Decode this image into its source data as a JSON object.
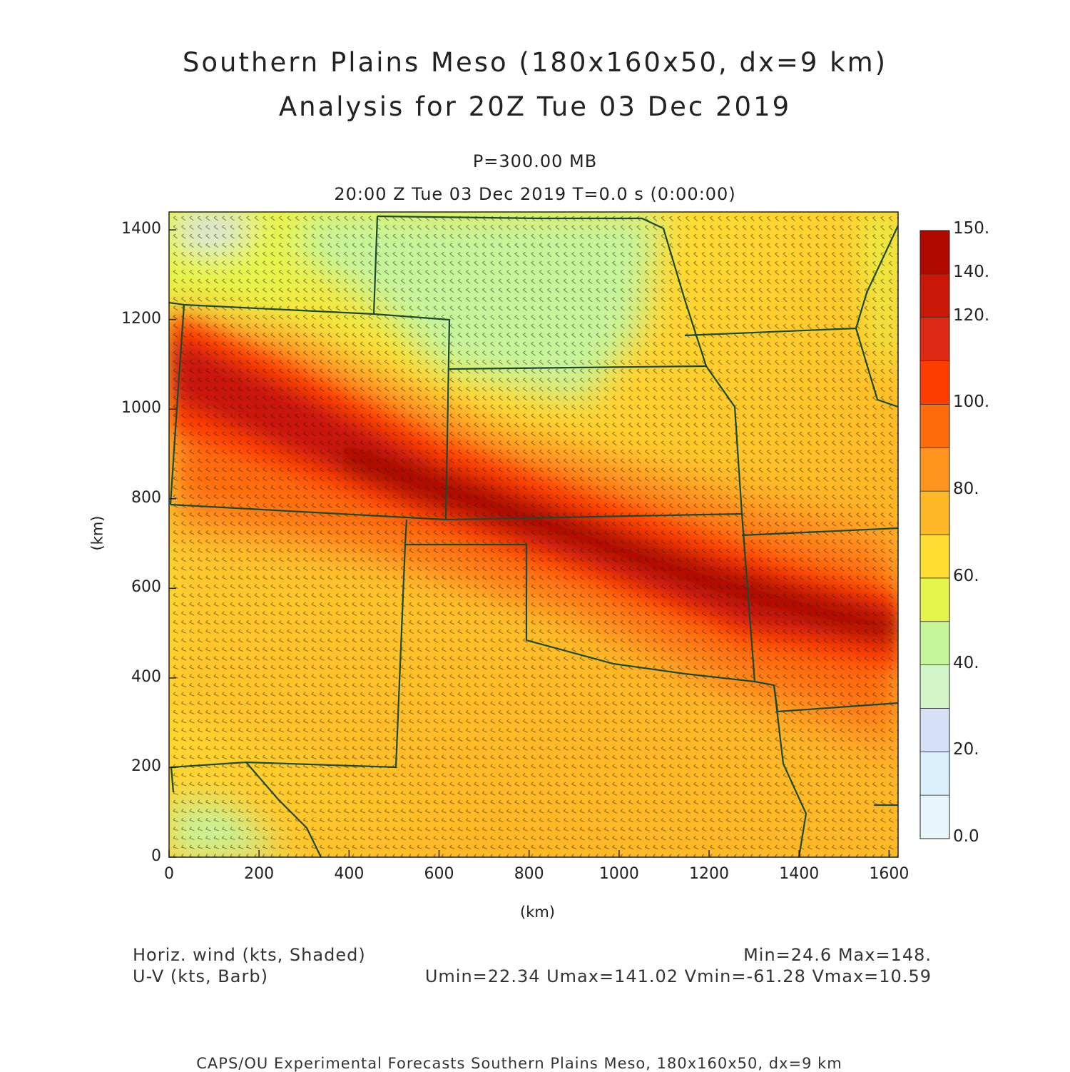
{
  "header": {
    "title_line1": "Southern Plains Meso (180x160x50, dx=9 km)",
    "title_line2": "Analysis for 20Z Tue 03 Dec 2019",
    "level": "P=300.00 MB",
    "valid_time": "20:00 Z Tue 03 Dec 2019    T=0.0 s (0:00:00)"
  },
  "axes": {
    "x_label": "(km)",
    "y_label": "(km)",
    "x_ticks": [
      "0",
      "200",
      "400",
      "600",
      "800",
      "1000",
      "1200",
      "1400",
      "1600"
    ],
    "y_ticks": [
      "0",
      "200",
      "400",
      "600",
      "800",
      "1000",
      "1200",
      "1400"
    ],
    "x_range": [
      0,
      1620
    ],
    "y_range": [
      0,
      1440
    ]
  },
  "colorbar": {
    "labels": [
      "0.0",
      "20.",
      "40.",
      "60.",
      "80.",
      "100.",
      "120.",
      "140.",
      "150."
    ],
    "colors": [
      "#e8f6fc",
      "#daf0fb",
      "#d6e0f6",
      "#d2f5c9",
      "#c6f49b",
      "#e6f54a",
      "#ffdd33",
      "#ffb825",
      "#ff9520",
      "#ff6c0c",
      "#ff3c00",
      "#dd2a12",
      "#c91807",
      "#b10800"
    ]
  },
  "footer": {
    "field1": "Horiz. wind (kts, Shaded)",
    "field2": "U-V (kts, Barb)",
    "stats1": "Min=24.6  Max=148.",
    "stats2": "Umin=22.34 Umax=141.02 Vmin=-61.28 Vmax=10.59",
    "credit": "CAPS/OU Experimental Forecasts  Southern Plains Meso, 180x160x50, dx=9 km"
  },
  "map": {
    "field": "Horizontal wind speed (kts)",
    "min": 24.6,
    "max": 148,
    "colors": {
      "boundaries": "#1a4a30",
      "barbs": "#2a1e12",
      "frame": "#222222"
    }
  }
}
